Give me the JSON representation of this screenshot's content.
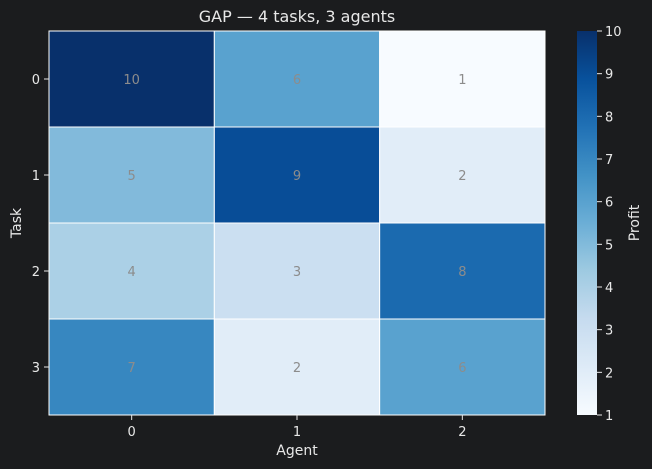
{
  "chart_data": {
    "type": "heatmap",
    "title": "GAP — 4 tasks, 3 agents",
    "xlabel": "Agent",
    "ylabel": "Task",
    "x_categories": [
      "0",
      "1",
      "2"
    ],
    "y_categories": [
      "0",
      "1",
      "2",
      "3"
    ],
    "values": [
      [
        10,
        6,
        1
      ],
      [
        5,
        9,
        2
      ],
      [
        4,
        3,
        8
      ],
      [
        7,
        2,
        6
      ]
    ],
    "colorbar": {
      "label": "Profit",
      "range": [
        1,
        10
      ],
      "ticks": [
        1,
        2,
        3,
        4,
        5,
        6,
        7,
        8,
        9,
        10
      ]
    },
    "colormap": "Blues",
    "colors": {
      "background": "#1b1c1e",
      "text": "#e8e8e8",
      "cell_label": "#8c8c8c",
      "cell_border": "#ffffff"
    }
  }
}
